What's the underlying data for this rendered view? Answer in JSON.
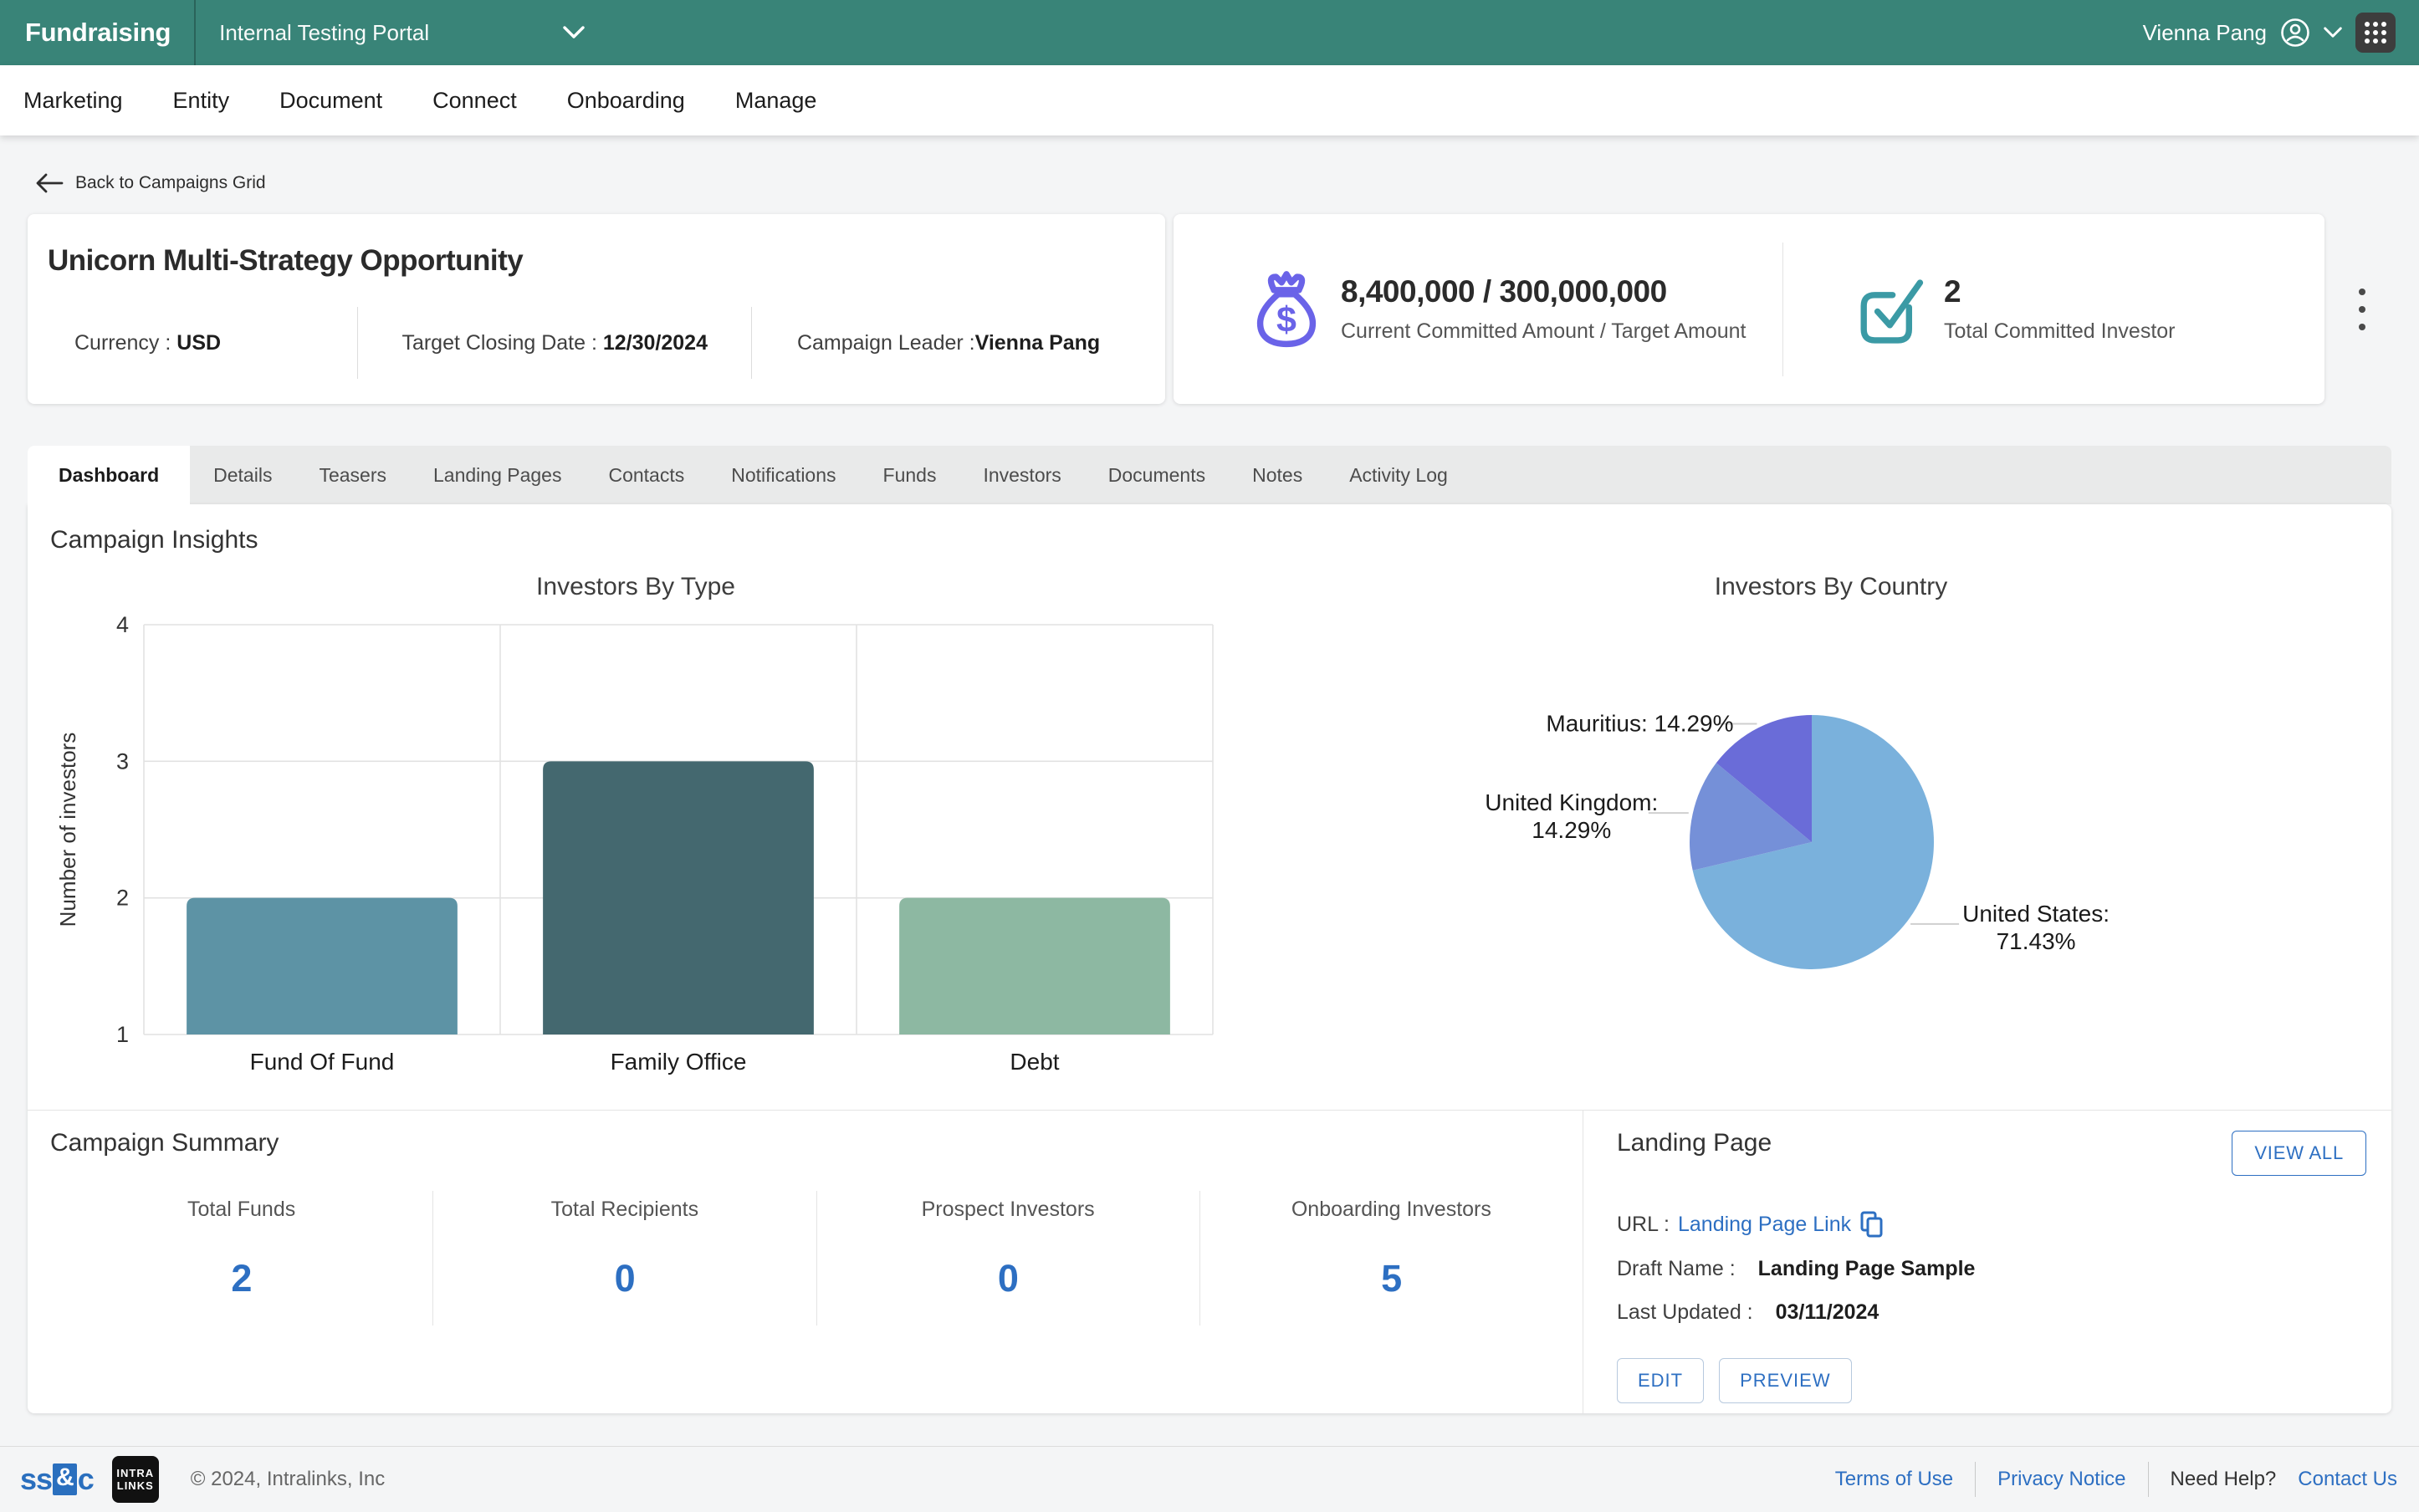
{
  "header": {
    "brand": "Fundraising",
    "portal": "Internal Testing Portal",
    "user": "Vienna Pang"
  },
  "nav": {
    "items": [
      "Marketing",
      "Entity",
      "Document",
      "Connect",
      "Onboarding",
      "Manage"
    ]
  },
  "back_link": "Back to Campaigns Grid",
  "campaign": {
    "title": "Unicorn Multi-Strategy Opportunity",
    "currency_label": "Currency :",
    "currency": "USD",
    "closing_label": "Target Closing Date :",
    "closing": "12/30/2024",
    "leader_label": "Campaign Leader :",
    "leader": "Vienna Pang"
  },
  "stats": {
    "committed_value": "8,400,000 / 300,000,000",
    "committed_caption": "Current Committed Amount / Target Amount",
    "investors_value": "2",
    "investors_caption": "Total Committed Investor"
  },
  "tabs": {
    "active": "Dashboard",
    "items": [
      "Dashboard",
      "Details",
      "Teasers",
      "Landing Pages",
      "Contacts",
      "Notifications",
      "Funds",
      "Investors",
      "Documents",
      "Notes",
      "Activity Log"
    ]
  },
  "insights": {
    "heading": "Campaign Insights"
  },
  "summary": {
    "heading": "Campaign Summary",
    "items": [
      {
        "label": "Total Funds",
        "value": "2"
      },
      {
        "label": "Total Recipients",
        "value": "0"
      },
      {
        "label": "Prospect Investors",
        "value": "0"
      },
      {
        "label": "Onboarding Investors",
        "value": "5"
      }
    ]
  },
  "landing": {
    "heading": "Landing Page",
    "view_all": "VIEW ALL",
    "url_label": "URL :",
    "url_link": "Landing Page Link",
    "draft_label": "Draft Name :",
    "draft_value": "Landing Page Sample",
    "updated_label": "Last Updated :",
    "updated_value": "03/11/2024",
    "edit": "EDIT",
    "preview": "PREVIEW"
  },
  "footer": {
    "ssc_logo": "ss&c",
    "intralinks_logo": "INTRALINKS",
    "copyright": "© 2024, Intralinks, Inc",
    "terms": "Terms of Use",
    "privacy": "Privacy Notice",
    "need_help": "Need Help?",
    "contact": "Contact Us"
  },
  "colors": {
    "header_teal": "#398478",
    "accent_blue": "#2d6fc2",
    "money_icon": "#6a63e8",
    "check_icon": "#3b9aa5",
    "stat_number_blue": "#2d6fc2"
  },
  "chart_data": [
    {
      "type": "bar",
      "title": "Investors By Type",
      "categories": [
        "Fund Of Fund",
        "Family Office",
        "Debt"
      ],
      "values": [
        2,
        3,
        2
      ],
      "colors": [
        "#5d93a5",
        "#44686f",
        "#8db8a2"
      ],
      "xlabel": "",
      "ylabel": "Number of investors",
      "yticks": [
        1,
        2,
        3,
        4
      ],
      "ylim": [
        1,
        4
      ],
      "grid": true,
      "legend": "none"
    },
    {
      "type": "pie",
      "title": "Investors By Country",
      "labels": [
        "United States",
        "United Kingdom",
        "Mauritius"
      ],
      "values": [
        71.43,
        14.29,
        14.29
      ],
      "colors": [
        "#7ab1dc",
        "#7590d8",
        "#6a6cd8"
      ],
      "start_angle": "top",
      "direction": "clockwise",
      "label_format": "name: value%",
      "legend": "outside-labels"
    }
  ]
}
